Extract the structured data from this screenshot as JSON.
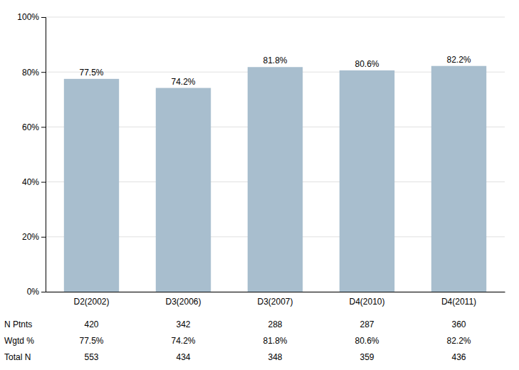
{
  "chart_data": {
    "type": "bar",
    "categories": [
      "D2(2002)",
      "D3(2006)",
      "D3(2007)",
      "D4(2010)",
      "D4(2011)"
    ],
    "values": [
      0.775,
      0.742,
      0.818,
      0.806,
      0.822
    ],
    "value_labels": [
      "77.5%",
      "74.2%",
      "81.8%",
      "80.6%",
      "82.2%"
    ],
    "data_labels": true,
    "color": "#a8bece",
    "ylim": [
      0,
      1.0
    ],
    "yticks": [
      {
        "value": 0.0,
        "label": "0%"
      },
      {
        "value": 0.2,
        "label": "20%"
      },
      {
        "value": 0.4,
        "label": "40%"
      },
      {
        "value": 0.6,
        "label": "60%"
      },
      {
        "value": 0.8,
        "label": "80%"
      },
      {
        "value": 1.0,
        "label": "100%"
      }
    ],
    "grid": true,
    "table": {
      "rows": [
        "N Ptnts",
        "Wgtd %",
        "Total N"
      ],
      "cells": [
        [
          "420",
          "342",
          "288",
          "287",
          "360"
        ],
        [
          "77.5%",
          "74.2%",
          "81.8%",
          "80.6%",
          "82.2%"
        ],
        [
          "553",
          "434",
          "348",
          "359",
          "436"
        ]
      ]
    }
  }
}
